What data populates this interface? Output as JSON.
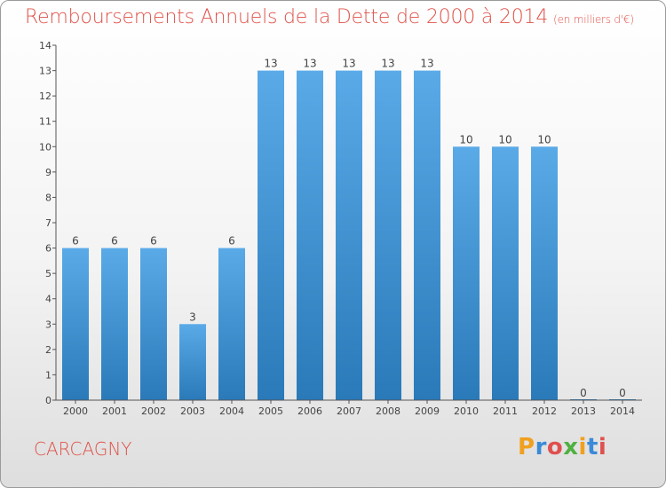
{
  "header": {
    "title": "Remboursements Annuels de la Dette de 2000 à 2014",
    "unit": "(en milliers d'€)"
  },
  "footer": {
    "commune": "CARCAGNY",
    "logo_text": "Proxiti"
  },
  "colors": {
    "title": "#e0524a",
    "bar_top": "#5aaae8",
    "bar_bottom": "#2a7ab9",
    "axis": "#555555"
  },
  "chart_data": {
    "type": "bar",
    "categories": [
      "2000",
      "2001",
      "2002",
      "2003",
      "2004",
      "2005",
      "2006",
      "2007",
      "2008",
      "2009",
      "2010",
      "2011",
      "2012",
      "2013",
      "2014"
    ],
    "values": [
      6,
      6,
      6,
      3,
      6,
      13,
      13,
      13,
      13,
      13,
      10,
      10,
      10,
      0,
      0
    ],
    "ylim": [
      0,
      14
    ],
    "yticks": [
      0,
      1,
      2,
      3,
      4,
      5,
      6,
      7,
      8,
      9,
      10,
      11,
      12,
      13,
      14
    ],
    "grid": false,
    "legend": "none"
  }
}
